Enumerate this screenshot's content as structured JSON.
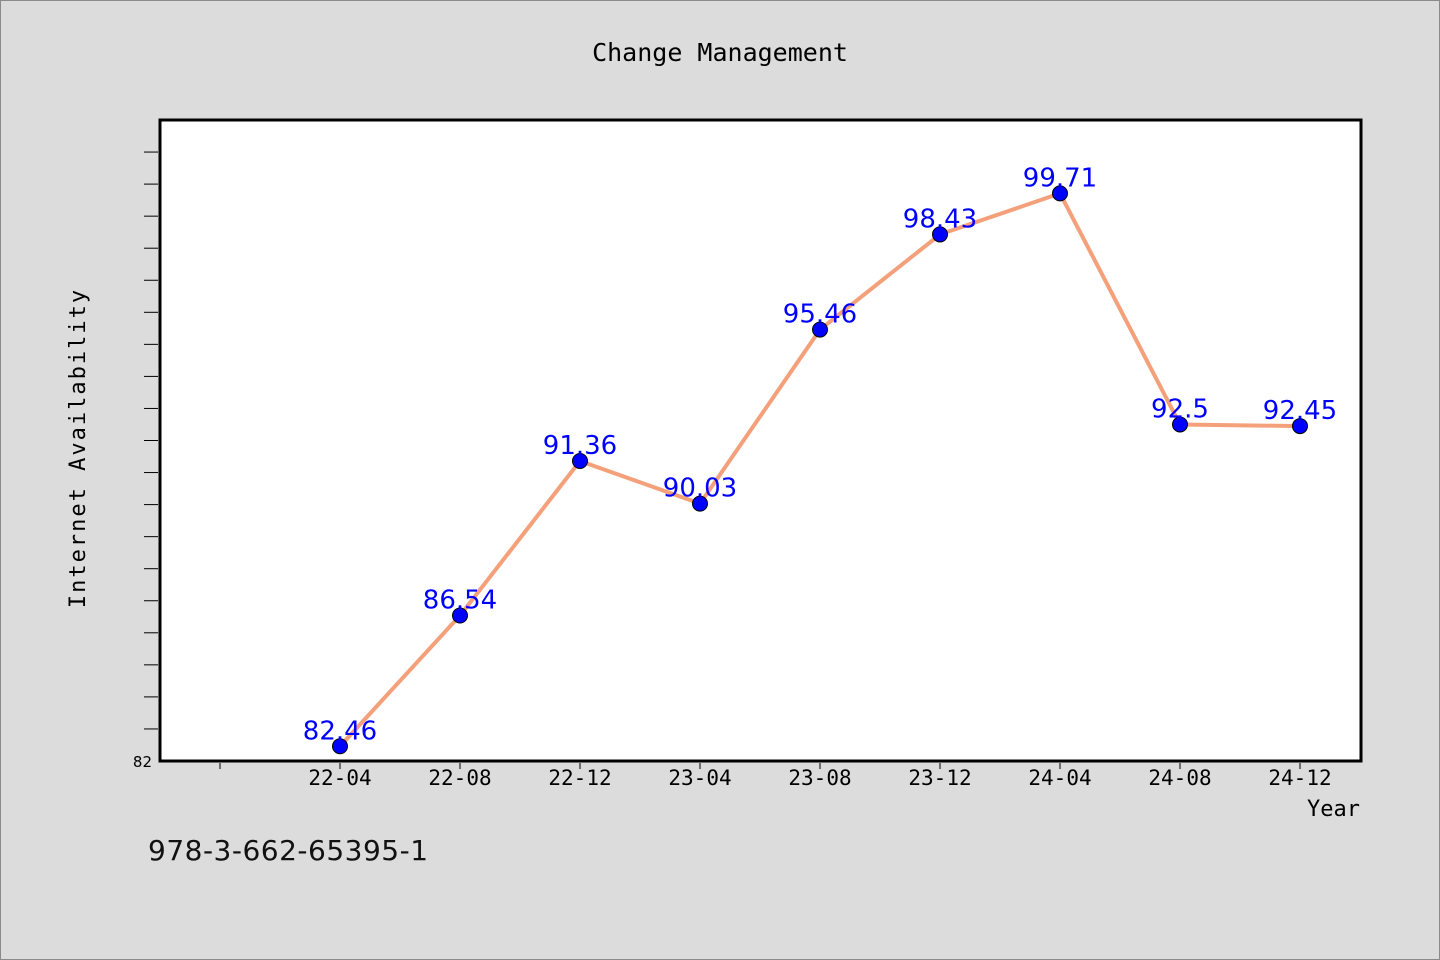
{
  "chart_data": {
    "type": "line",
    "title": "Change Management",
    "xlabel": "Year",
    "ylabel": "Internet Availability",
    "categories": [
      "22-04",
      "22-08",
      "22-12",
      "23-04",
      "23-08",
      "23-12",
      "24-04",
      "24-08",
      "24-12"
    ],
    "series": [
      {
        "values": [
          82.46,
          86.54,
          91.36,
          90.03,
          95.46,
          98.43,
          99.71,
          92.5,
          92.45
        ],
        "data_labels": [
          "82.46",
          "86.54",
          "91.36",
          "90.03",
          "95.46",
          "98.43",
          "99.71",
          "92.5",
          "92.45"
        ],
        "line_color": "#f4a07a",
        "marker_color": "#0000ff",
        "label_color": "#0000ff"
      }
    ],
    "ylim": [
      82,
      102
    ],
    "y_tick_labels": [
      "82"
    ],
    "grid": false,
    "legend": false
  },
  "footer": {
    "text": "978-3-662-65395-1"
  }
}
